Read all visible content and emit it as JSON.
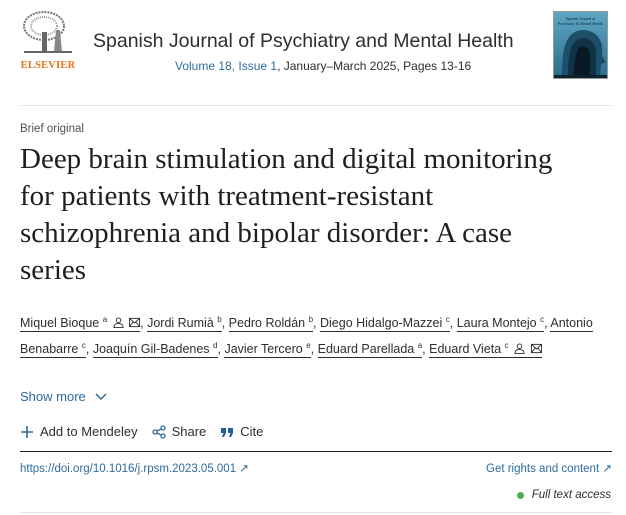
{
  "header": {
    "publisher_logo": "ELSEVIER",
    "journal_title": "Spanish Journal of Psychiatry and Mental Health",
    "volume_link": "Volume 18, Issue 1",
    "issue_rest": ", January–March 2025, Pages 13-16",
    "cover_text": "Spanish Journal of Psychiatry & Mental Health"
  },
  "article": {
    "type": "Brief original",
    "title": "Deep brain stimulation and digital monitoring for patients with treatment-resistant schizophrenia and bipolar disorder: A case series",
    "authors": [
      {
        "name": "Miquel Bioque",
        "aff": "a",
        "icons": true
      },
      {
        "name": "Jordi Rumià",
        "aff": "b"
      },
      {
        "name": "Pedro Roldán",
        "aff": "b"
      },
      {
        "name": "Diego Hidalgo-Mazzei",
        "aff": "c"
      },
      {
        "name": "Laura Montejo",
        "aff": "c"
      },
      {
        "name": "Antonio Benabarre",
        "aff": "c"
      },
      {
        "name": "Joaquín Gil-Badenes",
        "aff": "d"
      },
      {
        "name": "Javier Tercero",
        "aff": "e"
      },
      {
        "name": "Eduard Parellada",
        "aff": "a"
      },
      {
        "name": "Eduard Vieta",
        "aff": "c",
        "icons": true
      }
    ],
    "show_more": "Show more",
    "actions": {
      "mendeley": "Add to Mendeley",
      "share": "Share",
      "cite": "Cite"
    },
    "doi": "https://doi.org/10.1016/j.rpsm.2023.05.001",
    "rights": "Get rights and content",
    "access": "Full text access"
  },
  "colors": {
    "link": "#2e6b9e",
    "elsevier_orange": "#e9711c",
    "access_dot": "#4caf50"
  }
}
